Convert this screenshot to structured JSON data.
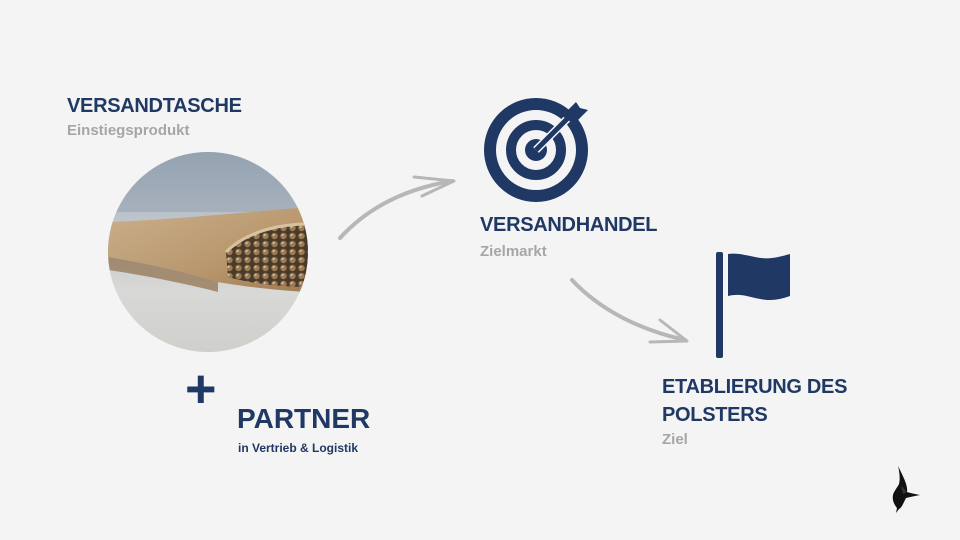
{
  "product": {
    "title": "VERSANDTASCHE",
    "subtitle": "Einstiegsprodukt"
  },
  "partner": {
    "plus": "+",
    "title": "PARTNER",
    "subtitle": "in Vertrieb & Logistik"
  },
  "market": {
    "title": "VERSANDHANDEL",
    "subtitle": "Zielmarkt"
  },
  "goal": {
    "title_line1": "ETABLIERUNG DES",
    "title_line2": "POLSTERS",
    "subtitle": "Ziel"
  },
  "colors": {
    "accent": "#1f3864",
    "muted": "#a6a6a6",
    "arrow": "#b7b7b7",
    "background": "#f4f4f4"
  },
  "icons": {
    "market": "target-icon",
    "goal": "flag-icon",
    "brand": "bird-logo-icon"
  }
}
